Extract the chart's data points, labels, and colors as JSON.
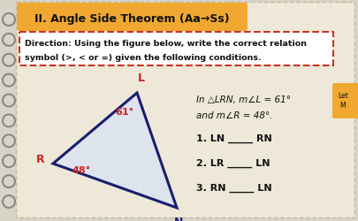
{
  "title": "II. Angle Side Theorem (Aa→Ss)",
  "title_bg": "#f0a830",
  "page_bg": "#d8d4c8",
  "inner_bg": "#eee8d8",
  "direction_text_line1": "Direction: Using the figure below, write the correct relation",
  "direction_text_line2": "symbol (>, < or =) given the following conditions.",
  "triangle_color": "#1a1e6e",
  "triangle_fill": "#dde4ee",
  "angle_L_label": "61°",
  "angle_R_label": "48°",
  "angle_color": "#cc2222",
  "label_L": "L",
  "label_R": "R",
  "label_N": "N",
  "label_color_LR": "#cc2222",
  "label_color_N": "#1a1e6e",
  "info_line1": "In △LRN, m∠L = 61°",
  "info_line2": "and m∠R = 48°.",
  "item1": "1. LN _____ RN",
  "item2": "2. LR _____ LN",
  "item3": "3. RN _____ LN",
  "let_text": "Let\nM",
  "let_bg": "#f0a830",
  "spiral_color": "#888888",
  "outer_border_color": "#c8b8a0",
  "dashed_border_color": "#cc3322",
  "direction_box_bg": "#ffffff"
}
